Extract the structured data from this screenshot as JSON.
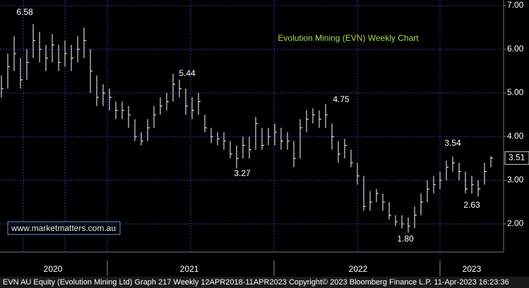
{
  "chart_data": {
    "type": "ohlc",
    "title": "Evolution Mining (EVN) Weekly Chart",
    "watermark": "www.marketmatters.com.au",
    "footer": "EVN AU Equity (Evolution Mining Ltd) Graph 217  Weekly 12APR2018-11APR2023  Copyright© 2023 Bloomberg Finance L.P.  11-Apr-2023 16:23:36",
    "x_labels": [
      "2020",
      "2021",
      "2022",
      "2023"
    ],
    "annotations": [
      "6.58",
      "5.44",
      "3.27",
      "4.75",
      "1.80",
      "3.54",
      "2.63"
    ],
    "ylim": [
      1.355,
      7.129
    ],
    "yticks": [
      {
        "value": 7,
        "label": "7.00"
      },
      {
        "value": 6,
        "label": "6.00"
      },
      {
        "value": 5,
        "label": "5.00"
      },
      {
        "value": 4,
        "label": "4.00"
      },
      {
        "value": 3,
        "label": "3.00"
      },
      {
        "value": 2,
        "label": "2.00"
      }
    ],
    "grid": true,
    "color": "#ffffff",
    "high": [
      5.4,
      5.9,
      6.3,
      5.8,
      6.0,
      6.58,
      6.4,
      6.1,
      6.35,
      6.1,
      6.2,
      6.1,
      6.3,
      6.5,
      6.0,
      5.4,
      5.2,
      5.1,
      4.8,
      4.8,
      4.7,
      4.4,
      4.1,
      4.4,
      4.7,
      4.9,
      5.0,
      5.44,
      5.3,
      5.1,
      4.9,
      5.0,
      4.5,
      4.2,
      4.1,
      4.1,
      3.9,
      3.8,
      4.0,
      4.0,
      4.45,
      4.2,
      4.2,
      4.3,
      4.2,
      4.1,
      3.9,
      4.4,
      4.6,
      4.65,
      4.6,
      4.75,
      4.3,
      3.9,
      3.95,
      3.7,
      3.4,
      3.1,
      2.75,
      2.8,
      2.7,
      2.5,
      2.2,
      2.2,
      2.15,
      2.4,
      2.7,
      3.0,
      3.1,
      3.2,
      3.45,
      3.54,
      3.4,
      3.2,
      3.1,
      3.0,
      3.4,
      3.55
    ],
    "low": [
      4.9,
      5.1,
      5.5,
      5.1,
      5.3,
      5.8,
      5.7,
      5.5,
      5.7,
      5.5,
      5.6,
      5.5,
      5.7,
      5.8,
      5.0,
      4.7,
      4.7,
      4.6,
      4.4,
      4.4,
      4.2,
      3.9,
      3.8,
      3.9,
      4.2,
      4.5,
      4.6,
      4.8,
      4.9,
      4.5,
      4.4,
      4.5,
      4.1,
      3.85,
      3.8,
      3.7,
      3.5,
      3.27,
      3.5,
      3.5,
      3.7,
      3.7,
      3.8,
      3.8,
      3.7,
      3.7,
      3.3,
      3.5,
      4.1,
      4.3,
      4.2,
      4.2,
      3.7,
      3.4,
      3.5,
      3.3,
      2.9,
      2.3,
      2.3,
      2.5,
      2.3,
      2.1,
      1.95,
      1.9,
      1.8,
      1.9,
      2.2,
      2.5,
      2.7,
      2.8,
      3.0,
      3.2,
      3.0,
      2.7,
      2.7,
      2.63,
      2.9,
      3.3
    ],
    "close": [
      5.1,
      5.6,
      5.9,
      5.3,
      5.7,
      6.2,
      6.0,
      5.8,
      6.1,
      5.7,
      5.9,
      5.8,
      6.0,
      6.2,
      5.5,
      4.9,
      5.0,
      4.9,
      4.6,
      4.6,
      4.5,
      4.0,
      3.9,
      4.2,
      4.5,
      4.7,
      4.8,
      5.2,
      5.1,
      4.7,
      4.6,
      4.8,
      4.2,
      4.0,
      3.95,
      3.9,
      3.6,
      3.5,
      3.8,
      3.7,
      4.3,
      3.8,
      4.0,
      4.1,
      3.9,
      3.9,
      3.5,
      4.2,
      4.4,
      4.5,
      4.4,
      4.5,
      4.0,
      3.6,
      3.8,
      3.4,
      3.1,
      2.4,
      2.5,
      2.7,
      2.5,
      2.2,
      2.05,
      2.0,
      1.95,
      2.2,
      2.5,
      2.8,
      2.9,
      3.0,
      3.3,
      3.4,
      3.2,
      2.8,
      2.9,
      2.8,
      3.2,
      3.51
    ]
  }
}
